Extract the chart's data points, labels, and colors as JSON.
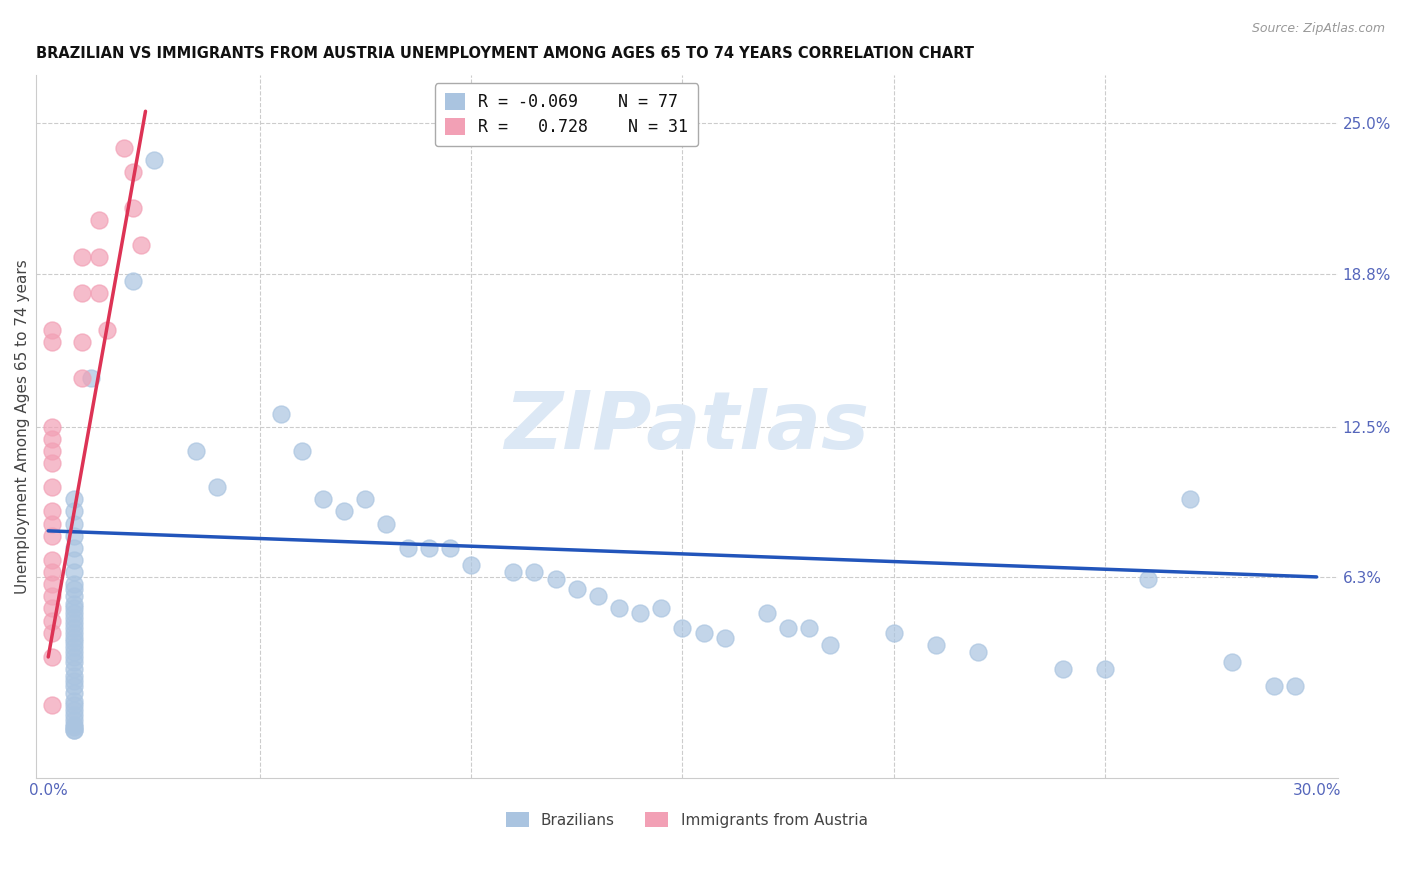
{
  "title": "BRAZILIAN VS IMMIGRANTS FROM AUSTRIA UNEMPLOYMENT AMONG AGES 65 TO 74 YEARS CORRELATION CHART",
  "source": "Source: ZipAtlas.com",
  "ylabel": "Unemployment Among Ages 65 to 74 years",
  "xlim": [
    -0.003,
    0.305
  ],
  "ylim": [
    -0.02,
    0.27
  ],
  "xticks": [
    0.0,
    0.05,
    0.1,
    0.15,
    0.2,
    0.25,
    0.3
  ],
  "xticklabels": [
    "0.0%",
    "",
    "",
    "",
    "",
    "",
    "30.0%"
  ],
  "right_yticks": [
    0.063,
    0.125,
    0.188,
    0.25
  ],
  "right_yticklabels": [
    "6.3%",
    "12.5%",
    "18.8%",
    "25.0%"
  ],
  "legend_R1": "-0.069",
  "legend_N1": "77",
  "legend_R2": "0.728",
  "legend_N2": "31",
  "blue_color": "#aac4e0",
  "pink_color": "#f2a0b5",
  "blue_line_color": "#2255bb",
  "pink_line_color": "#dd3355",
  "watermark": "ZIPatlas",
  "watermark_color": "#dce8f5",
  "blue_scatter_x": [
    0.025,
    0.02,
    0.01,
    0.006,
    0.006,
    0.006,
    0.006,
    0.006,
    0.006,
    0.006,
    0.006,
    0.006,
    0.006,
    0.006,
    0.006,
    0.006,
    0.006,
    0.006,
    0.006,
    0.006,
    0.006,
    0.006,
    0.006,
    0.006,
    0.006,
    0.006,
    0.006,
    0.006,
    0.006,
    0.006,
    0.006,
    0.006,
    0.006,
    0.006,
    0.006,
    0.006,
    0.006,
    0.006,
    0.006,
    0.006,
    0.035,
    0.04,
    0.055,
    0.06,
    0.065,
    0.07,
    0.075,
    0.08,
    0.085,
    0.09,
    0.095,
    0.1,
    0.11,
    0.115,
    0.12,
    0.125,
    0.13,
    0.135,
    0.14,
    0.145,
    0.15,
    0.155,
    0.16,
    0.17,
    0.175,
    0.18,
    0.185,
    0.2,
    0.21,
    0.22,
    0.24,
    0.25,
    0.26,
    0.27,
    0.28,
    0.29,
    0.295
  ],
  "blue_scatter_y": [
    0.235,
    0.185,
    0.145,
    0.095,
    0.09,
    0.085,
    0.08,
    0.075,
    0.07,
    0.065,
    0.06,
    0.058,
    0.055,
    0.052,
    0.05,
    0.048,
    0.046,
    0.044,
    0.042,
    0.04,
    0.038,
    0.036,
    0.034,
    0.032,
    0.03,
    0.028,
    0.025,
    0.022,
    0.02,
    0.018,
    0.015,
    0.012,
    0.01,
    0.008,
    0.006,
    0.004,
    0.002,
    0.001,
    0.0,
    0.0,
    0.115,
    0.1,
    0.13,
    0.115,
    0.095,
    0.09,
    0.095,
    0.085,
    0.075,
    0.075,
    0.075,
    0.068,
    0.065,
    0.065,
    0.062,
    0.058,
    0.055,
    0.05,
    0.048,
    0.05,
    0.042,
    0.04,
    0.038,
    0.048,
    0.042,
    0.042,
    0.035,
    0.04,
    0.035,
    0.032,
    0.025,
    0.025,
    0.062,
    0.095,
    0.028,
    0.018,
    0.018
  ],
  "pink_scatter_x": [
    0.001,
    0.001,
    0.001,
    0.001,
    0.001,
    0.001,
    0.001,
    0.001,
    0.001,
    0.001,
    0.001,
    0.001,
    0.001,
    0.001,
    0.001,
    0.001,
    0.008,
    0.008,
    0.008,
    0.008,
    0.012,
    0.012,
    0.012,
    0.014,
    0.018,
    0.02,
    0.02,
    0.022,
    0.001,
    0.001,
    0.001
  ],
  "pink_scatter_y": [
    0.165,
    0.16,
    0.125,
    0.12,
    0.115,
    0.11,
    0.1,
    0.09,
    0.085,
    0.08,
    0.07,
    0.065,
    0.06,
    0.055,
    0.05,
    0.045,
    0.195,
    0.18,
    0.16,
    0.145,
    0.21,
    0.195,
    0.18,
    0.165,
    0.24,
    0.23,
    0.215,
    0.2,
    0.04,
    0.03,
    0.01
  ],
  "blue_trend_x": [
    0.0,
    0.3
  ],
  "blue_trend_y": [
    0.082,
    0.063
  ],
  "pink_trend_x": [
    0.0,
    0.023
  ],
  "pink_trend_y": [
    0.03,
    0.255
  ]
}
